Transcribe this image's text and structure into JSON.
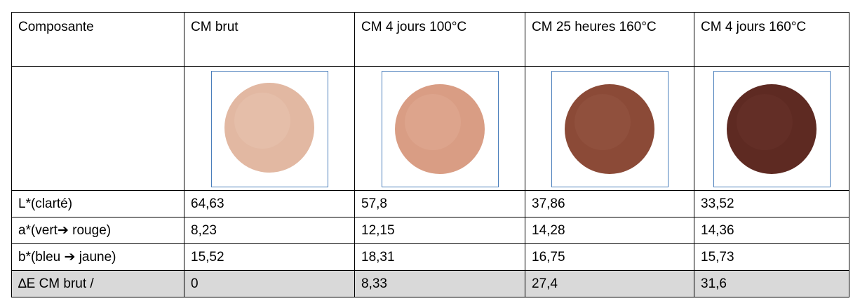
{
  "table": {
    "header": [
      "Composante",
      "CM brut",
      "CM 4 jours 100°C",
      "CM 25 heures 160°C",
      "CM 4 jours 160°C"
    ],
    "rows": [
      [
        "L*(clarté)",
        "64,63",
        "57,8",
        "37,86",
        "33,52"
      ],
      [
        "a*(vert➔ rouge)",
        "8,23",
        "12,15",
        "14,28",
        "14,36"
      ],
      [
        "b*(bleu ➔ jaune)",
        "15,52",
        "18,31",
        "16,75",
        "15,73"
      ],
      [
        "∆E CM brut /",
        "0",
        "8,33",
        "27,4",
        "31,6"
      ]
    ]
  }
}
